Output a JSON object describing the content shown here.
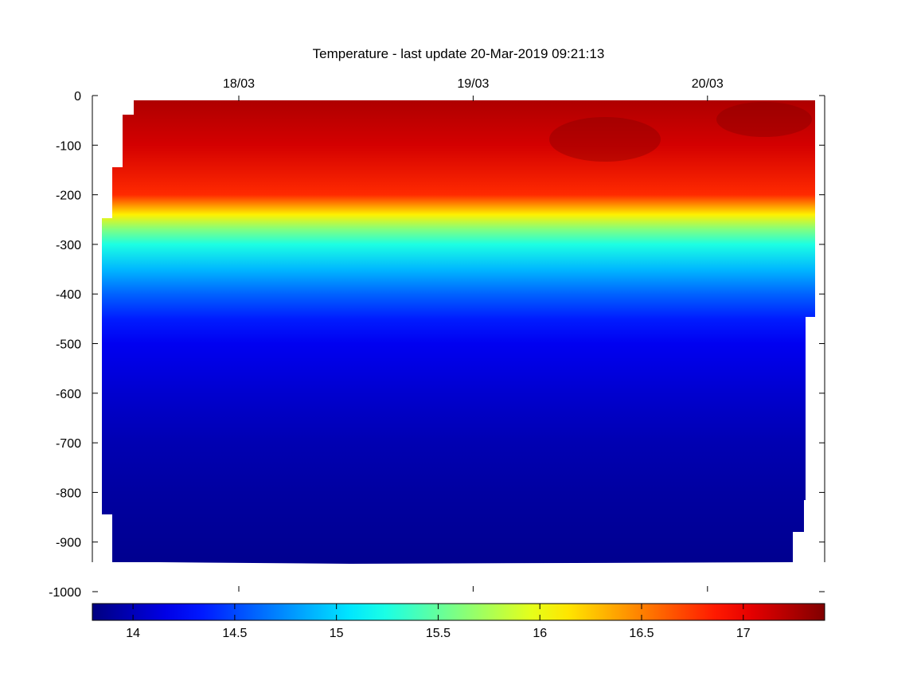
{
  "chart_data": {
    "type": "heatmap",
    "title": "Temperature - last update 20-Mar-2019 09:21:13",
    "xlabel": "",
    "ylabel": "",
    "x_range": [
      "2019-03-17T09:00",
      "2019-03-20T12:00"
    ],
    "x_ticks": [
      {
        "date": "2019-03-18",
        "label": "18/03"
      },
      {
        "date": "2019-03-19",
        "label": "19/03"
      },
      {
        "date": "2019-03-20",
        "label": "20/03"
      }
    ],
    "ylim": [
      -1000,
      0
    ],
    "y_ticks": [
      0,
      -100,
      -200,
      -300,
      -400,
      -500,
      -600,
      -700,
      -800,
      -900,
      -1000
    ],
    "grid": false,
    "colorbar": {
      "range": [
        13.8,
        17.4
      ],
      "ticks": [
        14,
        14.5,
        15,
        15.5,
        16,
        16.5,
        17
      ],
      "colormap": "jet"
    },
    "profile": [
      {
        "depth": 0,
        "value": 17.25
      },
      {
        "depth": -100,
        "value": 17.1
      },
      {
        "depth": -200,
        "value": 16.8
      },
      {
        "depth": -240,
        "value": 16.1
      },
      {
        "depth": -270,
        "value": 15.6
      },
      {
        "depth": -300,
        "value": 15.25
      },
      {
        "depth": -350,
        "value": 14.9
      },
      {
        "depth": -400,
        "value": 14.6
      },
      {
        "depth": -450,
        "value": 14.35
      },
      {
        "depth": -500,
        "value": 14.2
      },
      {
        "depth": -600,
        "value": 14.08
      },
      {
        "depth": -700,
        "value": 13.98
      },
      {
        "depth": -800,
        "value": 13.92
      },
      {
        "depth": -950,
        "value": 13.85
      }
    ]
  }
}
